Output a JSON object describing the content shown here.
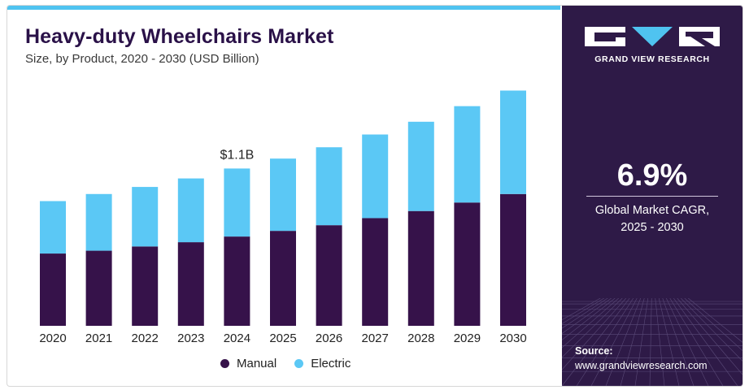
{
  "header": {
    "title": "Heavy-duty Wheelchairs Market",
    "subtitle": "Size, by Product, 2020 - 2030 (USD Billion)"
  },
  "chart_data": {
    "type": "bar",
    "stacked": true,
    "categories": [
      "2020",
      "2021",
      "2022",
      "2023",
      "2024",
      "2025",
      "2026",
      "2027",
      "2028",
      "2029",
      "2030"
    ],
    "series": [
      {
        "name": "Manual",
        "color": "#36124a",
        "values": [
          0.51,
          0.53,
          0.56,
          0.59,
          0.63,
          0.67,
          0.71,
          0.76,
          0.81,
          0.87,
          0.93
        ]
      },
      {
        "name": "Electric",
        "color": "#5bc8f5",
        "values": [
          0.37,
          0.4,
          0.42,
          0.45,
          0.48,
          0.51,
          0.55,
          0.59,
          0.63,
          0.68,
          0.73
        ]
      }
    ],
    "annotations": [
      {
        "category": "2024",
        "text": "$1.1B"
      }
    ],
    "ylim": [
      0,
      1.72
    ],
    "grid": false,
    "legend_position": "bottom"
  },
  "legend": [
    {
      "label": "Manual",
      "color": "#36124a"
    },
    {
      "label": "Electric",
      "color": "#5bc8f5"
    }
  ],
  "sidebar": {
    "brand": "GRAND VIEW RESEARCH",
    "logo_icon": "grand-view-research-logo",
    "cagr_value": "6.9%",
    "cagr_label_line1": "Global Market CAGR,",
    "cagr_label_line2": "2025 - 2030",
    "source_label": "Source:",
    "source_url": "www.grandviewresearch.com"
  }
}
